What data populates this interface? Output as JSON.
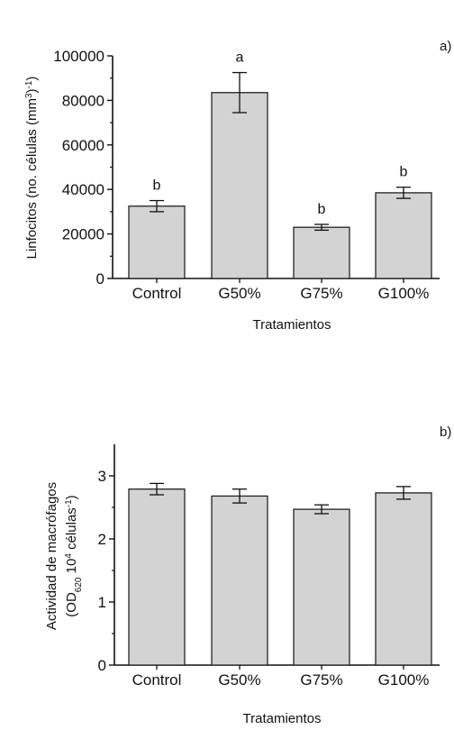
{
  "colors": {
    "bar_fill": "#d3d3d3",
    "bar_stroke": "#222222",
    "axis": "#111111"
  },
  "chart_data": [
    {
      "type": "bar",
      "panel_label": "a)",
      "categories": [
        "Control",
        "G50%",
        "G75%",
        "G100%"
      ],
      "values": [
        32500,
        83500,
        23000,
        38500
      ],
      "error": [
        2500,
        9000,
        1300,
        2500
      ],
      "significance": [
        "b",
        "a",
        "b",
        "b"
      ],
      "xlabel": "Tratamientos",
      "ylabel_main": "Linfocitos (no. células (mm",
      "ylabel_sup": "3",
      "ylabel_mid": ")",
      "ylabel_sup2": "-1",
      "ylabel_end": ")",
      "ylim": [
        0,
        100000
      ],
      "yticks": [
        "0",
        "20000",
        "40000",
        "60000",
        "80000",
        "100000"
      ],
      "grid": false
    },
    {
      "type": "bar",
      "panel_label": "b)",
      "categories": [
        "Control",
        "G50%",
        "G75%",
        "G100%"
      ],
      "values": [
        2.79,
        2.68,
        2.47,
        2.73
      ],
      "error": [
        0.09,
        0.11,
        0.07,
        0.1
      ],
      "xlabel": "Tratamientos",
      "ylabel_line1": "Actividad de macrófagos",
      "ylabel_line2_a": "(OD",
      "ylabel_line2_sub": "620",
      "ylabel_line2_b": " 10",
      "ylabel_line2_sup": "4",
      "ylabel_line2_c": " células",
      "ylabel_line2_sup2": "-1",
      "ylabel_line2_d": ")",
      "ylim": [
        0,
        3.5
      ],
      "yticks": [
        "0",
        "1",
        "2",
        "3"
      ],
      "grid": false
    }
  ]
}
